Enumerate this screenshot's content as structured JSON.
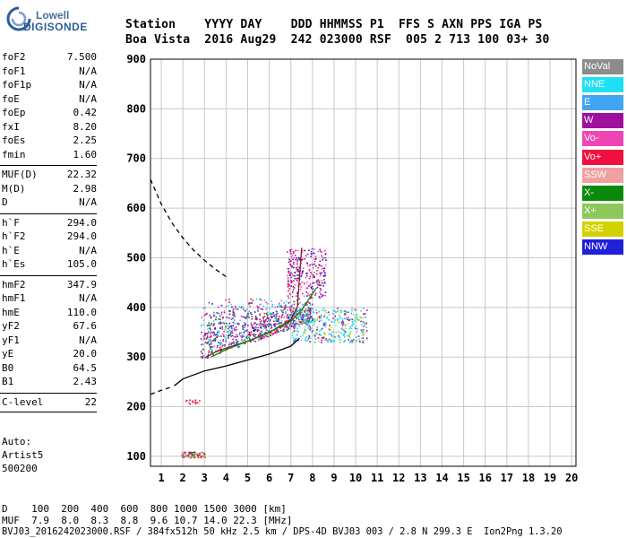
{
  "logo": {
    "line1": "Lowell",
    "line2": "DIGISONDE"
  },
  "header": {
    "row1": "Station    YYYY DAY    DDD HHMMSS P1  FFS S AXN PPS IGA PS",
    "row2": "Boa Vista  2016 Aug29  242 023000 RSF  005 2 713 100 03+ 30"
  },
  "params": [
    {
      "name": "foF2",
      "value": "7.500"
    },
    {
      "name": "foF1",
      "value": "N/A"
    },
    {
      "name": "foF1p",
      "value": "N/A"
    },
    {
      "name": "foE",
      "value": "N/A"
    },
    {
      "name": "foEp",
      "value": "0.42"
    },
    {
      "name": "fxI",
      "value": "8.20"
    },
    {
      "name": "foEs",
      "value": "2.25"
    },
    {
      "name": "fmin",
      "value": "1.60"
    },
    {
      "name": "MUF(D)",
      "value": "22.32"
    },
    {
      "name": "M(D)",
      "value": "2.98"
    },
    {
      "name": "D",
      "value": "N/A"
    },
    {
      "name": "h`F",
      "value": "294.0"
    },
    {
      "name": "h`F2",
      "value": "294.0"
    },
    {
      "name": "h`E",
      "value": "N/A"
    },
    {
      "name": "h`Es",
      "value": "105.0"
    },
    {
      "name": "hmF2",
      "value": "347.9"
    },
    {
      "name": "hmF1",
      "value": "N/A"
    },
    {
      "name": "hmE",
      "value": "110.0"
    },
    {
      "name": "yF2",
      "value": "67.6"
    },
    {
      "name": "yF1",
      "value": "N/A"
    },
    {
      "name": "yE",
      "value": "20.0"
    },
    {
      "name": "B0",
      "value": "64.5"
    },
    {
      "name": "B1",
      "value": "2.43"
    },
    {
      "name": "C-level",
      "value": "22"
    }
  ],
  "auto": {
    "line1": "Auto:",
    "line2": "Artist5",
    "line3": "500200"
  },
  "legend": [
    {
      "label": "NoVal",
      "color": "#8c8c8c"
    },
    {
      "label": "NNE",
      "color": "#1ee0f5"
    },
    {
      "label": "E",
      "color": "#41a4f5"
    },
    {
      "label": "W",
      "color": "#a0109e"
    },
    {
      "label": "Vo-",
      "color": "#ef45b4"
    },
    {
      "label": "Vo+",
      "color": "#f01040"
    },
    {
      "label": "SSW",
      "color": "#f0a0a0"
    },
    {
      "label": "X-",
      "color": "#0a8a0a"
    },
    {
      "label": "X+",
      "color": "#8fc85a"
    },
    {
      "label": "SSE",
      "color": "#d2d200"
    },
    {
      "label": "NNW",
      "color": "#2020d8"
    }
  ],
  "footer": {
    "row1": "D    100  200  400  600  800 1000 1500 3000 [km]",
    "row2": "MUF  7.9  8.0  8.3  8.8  9.6 10.7 14.0 22.3 [MHz]",
    "row3": "BVJ03_2016242023000.RSF / 384fx512h 50 kHz 2.5 km / DPS-4D BVJ03 003 / 2.8 N 299.3 E  Ion2Png 1.3.20"
  },
  "chart_data": {
    "type": "scatter",
    "title": "",
    "xlabel": "",
    "ylabel": "",
    "xlim": [
      0.5,
      20.2
    ],
    "ylim": [
      80,
      900
    ],
    "x_ticks": [
      1,
      2,
      3,
      4,
      5,
      6,
      7,
      8,
      9,
      10,
      11,
      12,
      13,
      14,
      15,
      16,
      17,
      18,
      19,
      20
    ],
    "y_ticks": [
      100,
      200,
      300,
      400,
      500,
      600,
      700,
      800,
      900
    ],
    "grid": true,
    "series": [
      {
        "name": "virtual height trace (h'F)",
        "type": "line",
        "color": "#8b1a1a",
        "x": [
          3.0,
          3.5,
          4.0,
          4.5,
          5.0,
          5.5,
          6.0,
          6.5,
          7.0,
          7.3,
          7.5
        ],
        "y": [
          298,
          310,
          318,
          325,
          332,
          340,
          350,
          362,
          375,
          400,
          520
        ]
      },
      {
        "name": "X trace",
        "type": "line",
        "color": "#0a8a0a",
        "x": [
          3.3,
          4.0,
          5.0,
          6.0,
          7.0,
          7.5,
          8.2
        ],
        "y": [
          300,
          315,
          332,
          350,
          372,
          395,
          440
        ]
      },
      {
        "name": "real height profile",
        "type": "line",
        "color": "#000000",
        "x": [
          1.6,
          2.0,
          3.0,
          4.0,
          5.0,
          6.0,
          7.0,
          7.4
        ],
        "y": [
          242,
          256,
          272,
          282,
          294,
          306,
          322,
          338
        ]
      },
      {
        "name": "MUF curve (dashed)",
        "type": "dashed",
        "color": "#000000",
        "x": [
          0.5,
          1.0,
          1.5,
          2.0,
          2.5,
          3.0,
          3.5,
          4.0
        ],
        "y": [
          658,
          608,
          570,
          540,
          515,
          495,
          477,
          462
        ]
      },
      {
        "name": "profile extrapolation (dashed)",
        "type": "dashed",
        "color": "#000000",
        "x": [
          0.5,
          1.0,
          1.5
        ],
        "y": [
          225,
          233,
          240
        ]
      }
    ],
    "echo_clusters": [
      {
        "label": "F-region main",
        "x_range": [
          2.8,
          8.0
        ],
        "y_range": [
          300,
          420
        ]
      },
      {
        "label": "NNE spread",
        "x_range": [
          7.0,
          10.5
        ],
        "y_range": [
          330,
          400
        ]
      },
      {
        "label": "upper spread",
        "x_range": [
          6.8,
          8.6
        ],
        "y_range": [
          420,
          520
        ]
      },
      {
        "label": "Es",
        "x_range": [
          1.9,
          3.0
        ],
        "y_range": [
          98,
          110
        ]
      },
      {
        "label": "Es multiple",
        "x_range": [
          2.1,
          2.8
        ],
        "y_range": [
          205,
          215
        ]
      }
    ]
  }
}
